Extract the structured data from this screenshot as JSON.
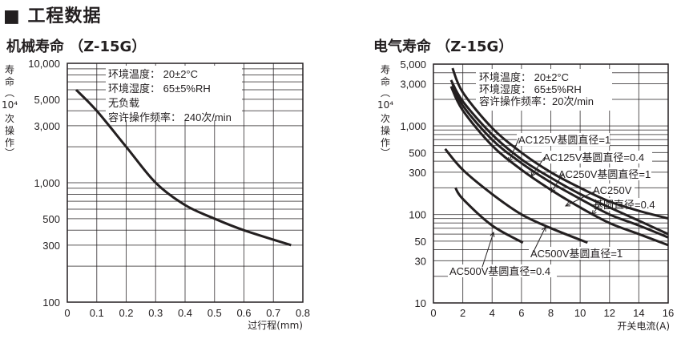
{
  "section": {
    "title": "■ 工程数据"
  },
  "charts": [
    {
      "title": "机械寿命 （Z-15G）"
    },
    {
      "title": "电气寿命 （Z-15G）"
    }
  ],
  "chart_data": [
    {
      "type": "line",
      "title": "机械寿命 （Z-15G）",
      "xlabel": "过行程(mm)",
      "ylabel": "寿命（10⁴次操作）",
      "yscale": "log",
      "xlim": [
        0,
        0.8
      ],
      "ylim": [
        100,
        10000
      ],
      "xticks": [
        "0",
        "0.1",
        "0.2",
        "0.3",
        "0.4",
        "0.5",
        "0.6",
        "0.7",
        "0.8"
      ],
      "yticks": [
        "10,000",
        "5,000",
        "3,000",
        "1,000",
        "500",
        "300",
        "100"
      ],
      "grid": true,
      "annotations": [
        "环境温度： 20±2°C",
        "环境湿度： 65±5%RH",
        "无负载",
        "容许操作频率： 240次/min"
      ],
      "series": [
        {
          "name": "机械寿命",
          "x": [
            0.03,
            0.1,
            0.2,
            0.3,
            0.4,
            0.5,
            0.6,
            0.76
          ],
          "y": [
            6000,
            4000,
            2000,
            1000,
            650,
            500,
            400,
            300
          ]
        }
      ]
    },
    {
      "type": "line",
      "title": "电气寿命 （Z-15G）",
      "xlabel": "开关电流(A)",
      "ylabel": "寿命（10⁴次操作）",
      "yscale": "log",
      "xlim": [
        0,
        16
      ],
      "ylim": [
        10,
        5000
      ],
      "xticks": [
        "0",
        "2",
        "4",
        "6",
        "8",
        "10",
        "12",
        "14",
        "16"
      ],
      "yticks": [
        "5,000",
        "3,000",
        "1,000",
        "500",
        "300",
        "100",
        "50",
        "30",
        "10"
      ],
      "grid": true,
      "annotations": [
        "环境温度： 20±2°C",
        "环境湿度： 65±5%RH",
        "容许操作频率：20次/min"
      ],
      "series": [
        {
          "name": "AC125V基圆直径=1",
          "x": [
            1.3,
            2,
            4,
            6,
            8,
            10,
            12,
            14,
            16
          ],
          "y": [
            4500,
            2400,
            950,
            500,
            300,
            200,
            140,
            110,
            90
          ]
        },
        {
          "name": "AC125V基圆直径=0.4",
          "x": [
            1.2,
            2,
            4,
            6,
            8,
            10,
            12,
            14,
            16
          ],
          "y": [
            3300,
            1900,
            800,
            420,
            260,
            170,
            120,
            85,
            60
          ]
        },
        {
          "name": "AC250V基圆直径=1",
          "x": [
            1.3,
            2,
            4,
            6,
            8,
            10,
            12,
            14,
            16
          ],
          "y": [
            3000,
            1700,
            700,
            380,
            230,
            150,
            100,
            75,
            55
          ]
        },
        {
          "name": "AC250V基圆直径=0.4",
          "x": [
            1.2,
            2,
            4,
            6,
            8,
            10,
            12,
            14,
            16
          ],
          "y": [
            2800,
            1500,
            600,
            320,
            190,
            120,
            80,
            60,
            45
          ]
        },
        {
          "name": "AC500V基圆直径=1",
          "x": [
            0.8,
            2,
            4,
            6,
            8,
            10.5
          ],
          "y": [
            550,
            320,
            170,
            100,
            70,
            48
          ]
        },
        {
          "name": "AC500V基圆直径=0.4",
          "x": [
            1.5,
            2,
            4,
            6.1
          ],
          "y": [
            200,
            150,
            75,
            48
          ]
        }
      ]
    }
  ],
  "left": {
    "ylabel_chars": [
      "寿",
      "命",
      "︵",
      "10⁴",
      "次",
      "操",
      "作",
      "︶"
    ],
    "yticks": [
      {
        "label": "10,000",
        "v": 10000
      },
      {
        "label": "5,000",
        "v": 5000
      },
      {
        "label": "3,000",
        "v": 3000
      },
      {
        "label": "1,000",
        "v": 1000
      },
      {
        "label": "500",
        "v": 500
      },
      {
        "label": "300",
        "v": 300
      },
      {
        "label": "100",
        "v": 100
      }
    ],
    "xticks": [
      "0",
      "0.1",
      "0.2",
      "0.3",
      "0.4",
      "0.5",
      "0.6",
      "0.7",
      "0.8"
    ],
    "xlabel": "过行程(mm)",
    "notes": [
      "环境温度：  20±2°C",
      "环境湿度：  65±5%RH",
      "无负载",
      "容许操作频率：  240次/min"
    ]
  },
  "right": {
    "ylabel_chars": [
      "寿",
      "命",
      "︵",
      "10⁴",
      "次",
      "操",
      "作",
      "︶"
    ],
    "yticks": [
      {
        "label": "5,000",
        "v": 5000
      },
      {
        "label": "3,000",
        "v": 3000
      },
      {
        "label": "1,000",
        "v": 1000
      },
      {
        "label": "500",
        "v": 500
      },
      {
        "label": "300",
        "v": 300
      },
      {
        "label": "100",
        "v": 100
      },
      {
        "label": "50",
        "v": 50
      },
      {
        "label": "30",
        "v": 30
      },
      {
        "label": "10",
        "v": 10
      }
    ],
    "xticks": [
      "0",
      "2",
      "4",
      "6",
      "8",
      "10",
      "12",
      "14",
      "16"
    ],
    "xlabel": "开关电流(A)",
    "notes": [
      "环境温度：  20±2°C",
      "环境湿度：  65±5%RH",
      "容许操作频率：20次/min"
    ],
    "curve_labels": [
      "AC125V基圆直径=1",
      "AC125V基圆直径=0.4",
      "AC250V基圆直径=1",
      "AC250V",
      "基圆直径=0.4",
      "AC500V基圆直径=1",
      "AC500V基圆直径=0.4"
    ]
  }
}
